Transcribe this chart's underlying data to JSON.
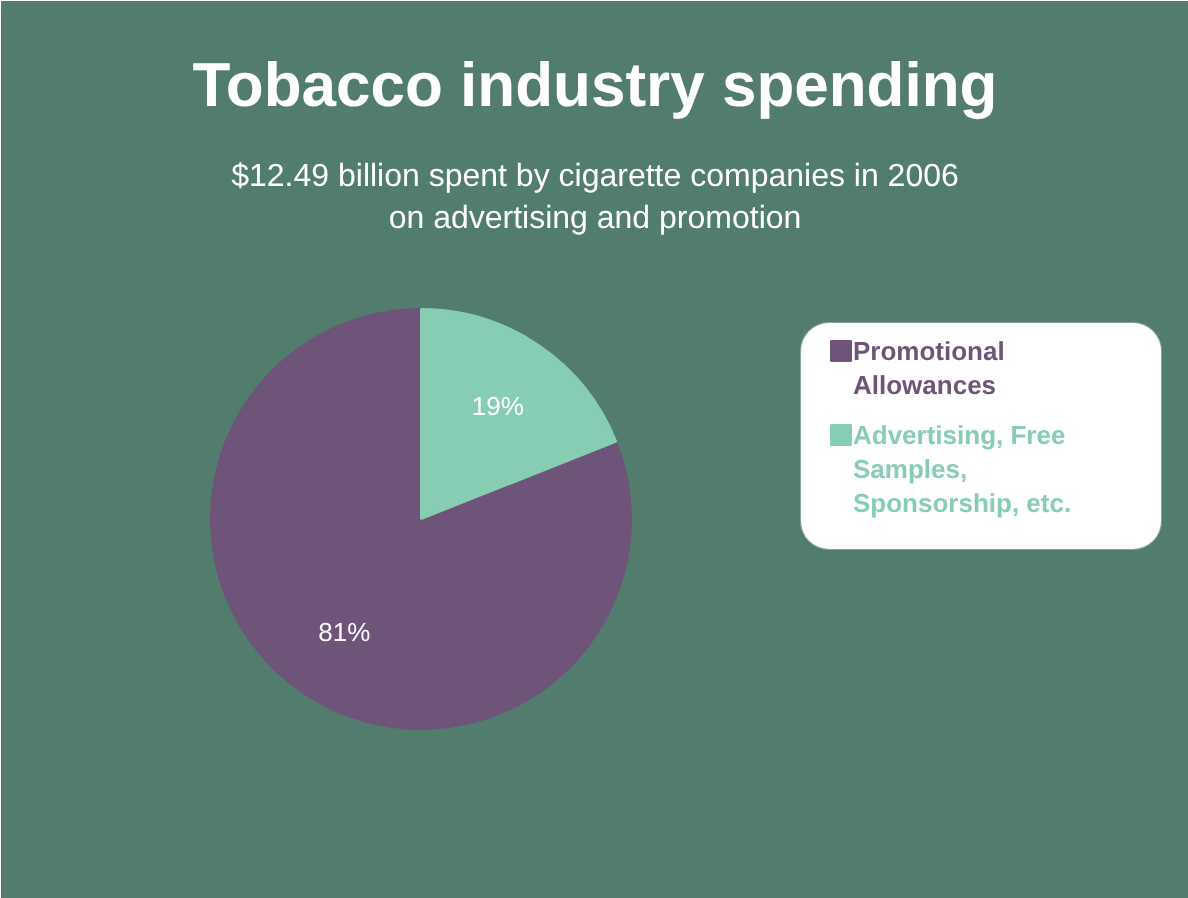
{
  "chart_data": {
    "type": "pie",
    "title": "Tobacco industry spending",
    "subtitle": "$12.49 billion spent by cigarette companies in 2006 on advertising and promotion",
    "categories": [
      "Promotional Allowances",
      "Advertising, Free Samples, Sponsorship, etc."
    ],
    "values": [
      81,
      19
    ],
    "colors": [
      "#6e5479",
      "#86cdb4"
    ],
    "value_labels": [
      "81%",
      "19%"
    ],
    "legend": "right"
  }
}
